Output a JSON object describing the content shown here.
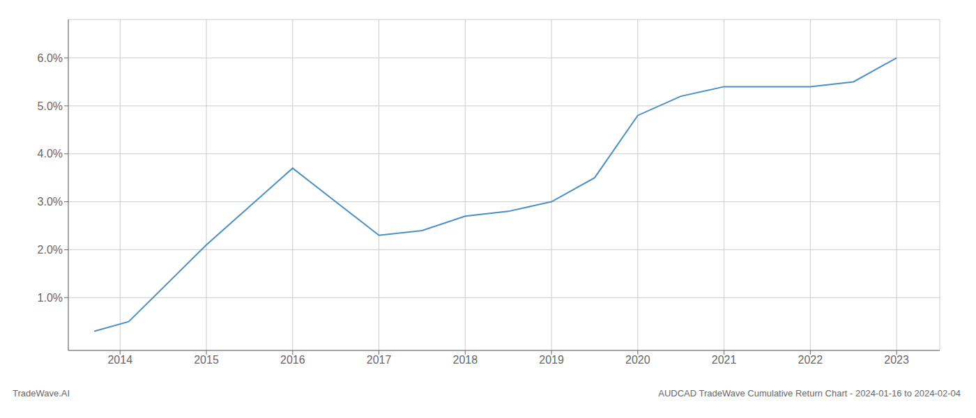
{
  "chart_data": {
    "type": "line",
    "x": [
      2013.7,
      2014.1,
      2015.0,
      2016.0,
      2017.0,
      2017.5,
      2018.0,
      2018.5,
      2019.0,
      2019.5,
      2020.0,
      2020.5,
      2021.0,
      2021.5,
      2022.0,
      2022.5,
      2023.0
    ],
    "values": [
      0.003,
      0.005,
      0.021,
      0.037,
      0.023,
      0.024,
      0.027,
      0.028,
      0.03,
      0.035,
      0.048,
      0.052,
      0.054,
      0.054,
      0.054,
      0.055,
      0.06
    ],
    "color": "#4a90c4",
    "xlim": [
      2013.4,
      2023.5
    ],
    "ylim": [
      -0.001,
      0.068
    ],
    "xticks": [
      2014,
      2015,
      2016,
      2017,
      2018,
      2019,
      2020,
      2021,
      2022,
      2023
    ],
    "yticks": [
      {
        "value": 0.01,
        "label": "1.0%"
      },
      {
        "value": 0.02,
        "label": "2.0%"
      },
      {
        "value": 0.03,
        "label": "3.0%"
      },
      {
        "value": 0.04,
        "label": "4.0%"
      },
      {
        "value": 0.05,
        "label": "5.0%"
      },
      {
        "value": 0.06,
        "label": "6.0%"
      }
    ],
    "grid": true,
    "annotations": [
      "TradeWave.AI",
      "AUDCAD TradeWave Cumulative Return Chart - 2024-01-16 to 2024-02-04"
    ]
  }
}
